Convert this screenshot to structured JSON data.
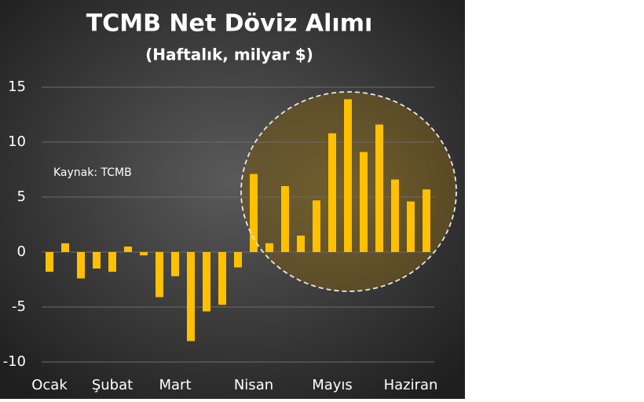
{
  "chart_data": {
    "type": "bar",
    "title": "TCMB Net Döviz Alımı",
    "subtitle": "(Haftalık, milyar $)",
    "annotation": "Kaynak: TCMB",
    "categories": [
      "Ocak",
      null,
      null,
      null,
      "Şubat",
      null,
      null,
      null,
      "Mart",
      null,
      null,
      null,
      null,
      "Nisan",
      null,
      null,
      null,
      null,
      "Mayıs",
      null,
      null,
      null,
      null,
      "Haziran",
      null
    ],
    "values": [
      -1.8,
      0.8,
      -2.4,
      -1.5,
      -1.8,
      0.5,
      -0.3,
      -4.1,
      -2.2,
      -8.1,
      -5.4,
      -4.8,
      -1.4,
      7.1,
      0.8,
      6.0,
      1.5,
      4.7,
      10.8,
      13.9,
      9.1,
      11.6,
      6.6,
      4.6,
      5.7
    ],
    "color": "#ffc000",
    "ylim": [
      -10,
      15
    ],
    "yticks": [
      -10,
      -5,
      0,
      5,
      10,
      15
    ],
    "grid": true
  }
}
